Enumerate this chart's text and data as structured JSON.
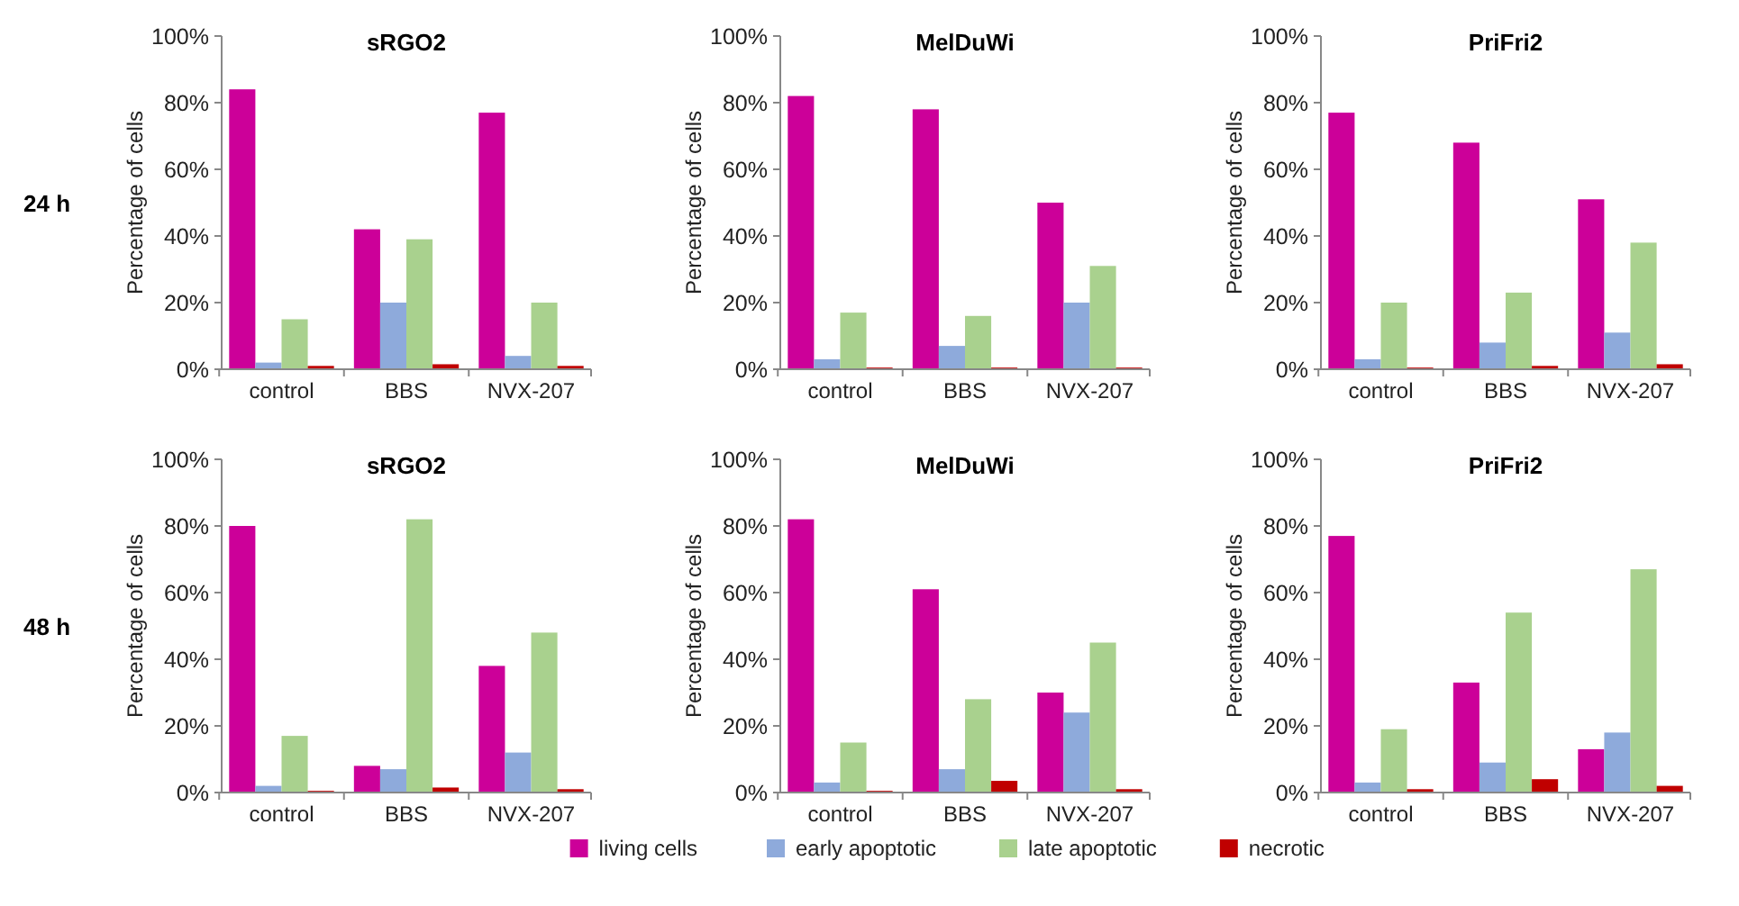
{
  "chart_data": [
    {
      "type": "bar",
      "title": "sRGO2",
      "ylabel": "Percentage of cells",
      "categories": [
        "control",
        "BBS",
        "NVX-207"
      ],
      "ylim": [
        0,
        100
      ],
      "yticks": [
        {
          "value": 0,
          "label": "0%"
        },
        {
          "value": 20,
          "label": "20%"
        },
        {
          "value": 40,
          "label": "40%"
        },
        {
          "value": 60,
          "label": "60%"
        },
        {
          "value": 80,
          "label": "80%"
        },
        {
          "value": 100,
          "label": "100%"
        }
      ],
      "legend": "bottom",
      "annotations": [
        "24 h"
      ],
      "series": [
        {
          "name": "living cells",
          "color": "#cc0099",
          "values": [
            84,
            42,
            77
          ]
        },
        {
          "name": "early apoptotic",
          "color": "#8eaadb",
          "values": [
            2,
            20,
            4
          ]
        },
        {
          "name": "late apoptotic",
          "color": "#a9d18e",
          "values": [
            15,
            39,
            20
          ]
        },
        {
          "name": "necrotic",
          "color": "#c00000",
          "values": [
            1,
            1.5,
            1
          ]
        }
      ]
    },
    {
      "type": "bar",
      "title": "MelDuWi",
      "ylabel": "Percentage of cells",
      "categories": [
        "control",
        "BBS",
        "NVX-207"
      ],
      "ylim": [
        0,
        100
      ],
      "yticks": [
        {
          "value": 0,
          "label": "0%"
        },
        {
          "value": 20,
          "label": "20%"
        },
        {
          "value": 40,
          "label": "40%"
        },
        {
          "value": 60,
          "label": "60%"
        },
        {
          "value": 80,
          "label": "80%"
        },
        {
          "value": 100,
          "label": "100%"
        }
      ],
      "series": [
        {
          "color": "#cc0099",
          "values": [
            82,
            78,
            50
          ]
        },
        {
          "color": "#8eaadb",
          "values": [
            3,
            7,
            20
          ]
        },
        {
          "color": "#a9d18e",
          "values": [
            17,
            16,
            31
          ]
        },
        {
          "color": "#c00000",
          "values": [
            0.5,
            0.5,
            0.5
          ]
        }
      ]
    },
    {
      "type": "bar",
      "title": "PriFri2",
      "ylabel": "Percentage of cells",
      "categories": [
        "control",
        "BBS",
        "NVX-207"
      ],
      "ylim": [
        0,
        100
      ],
      "yticks": [
        {
          "value": 0,
          "label": "0%"
        },
        {
          "value": 20,
          "label": "20%"
        },
        {
          "value": 40,
          "label": "40%"
        },
        {
          "value": 60,
          "label": "60%"
        },
        {
          "value": 80,
          "label": "80%"
        },
        {
          "value": 100,
          "label": "100%"
        }
      ],
      "series": [
        {
          "color": "#cc0099",
          "values": [
            77,
            68,
            51
          ]
        },
        {
          "color": "#8eaadb",
          "values": [
            3,
            8,
            11
          ]
        },
        {
          "color": "#a9d18e",
          "values": [
            20,
            23,
            38
          ]
        },
        {
          "color": "#c00000",
          "values": [
            0.5,
            1,
            1.5
          ]
        }
      ]
    },
    {
      "type": "bar",
      "title": "sRGO2",
      "ylabel": "Percentage of cells",
      "categories": [
        "control",
        "BBS",
        "NVX-207"
      ],
      "ylim": [
        0,
        100
      ],
      "yticks": [
        {
          "value": 0,
          "label": "0%"
        },
        {
          "value": 20,
          "label": "20%"
        },
        {
          "value": 40,
          "label": "40%"
        },
        {
          "value": 60,
          "label": "60%"
        },
        {
          "value": 80,
          "label": "80%"
        },
        {
          "value": 100,
          "label": "100%"
        }
      ],
      "annotations": [
        "48 h"
      ],
      "series": [
        {
          "color": "#cc0099",
          "values": [
            80,
            8,
            38
          ]
        },
        {
          "color": "#8eaadb",
          "values": [
            2,
            7,
            12
          ]
        },
        {
          "color": "#a9d18e",
          "values": [
            17,
            82,
            48
          ]
        },
        {
          "color": "#c00000",
          "values": [
            0.5,
            1.5,
            1
          ]
        }
      ]
    },
    {
      "type": "bar",
      "title": "MelDuWi",
      "ylabel": "Percentage of cells",
      "categories": [
        "control",
        "BBS",
        "NVX-207"
      ],
      "ylim": [
        0,
        100
      ],
      "yticks": [
        {
          "value": 0,
          "label": "0%"
        },
        {
          "value": 20,
          "label": "20%"
        },
        {
          "value": 40,
          "label": "40%"
        },
        {
          "value": 60,
          "label": "60%"
        },
        {
          "value": 80,
          "label": "80%"
        },
        {
          "value": 100,
          "label": "100%"
        }
      ],
      "series": [
        {
          "color": "#cc0099",
          "values": [
            82,
            61,
            30
          ]
        },
        {
          "color": "#8eaadb",
          "values": [
            3,
            7,
            24
          ]
        },
        {
          "color": "#a9d18e",
          "values": [
            15,
            28,
            45
          ]
        },
        {
          "color": "#c00000",
          "values": [
            0.5,
            3.5,
            1
          ]
        }
      ]
    },
    {
      "type": "bar",
      "title": "PriFri2",
      "ylabel": "Percentage of cells",
      "categories": [
        "control",
        "BBS",
        "NVX-207"
      ],
      "ylim": [
        0,
        100
      ],
      "yticks": [
        {
          "value": 0,
          "label": "0%"
        },
        {
          "value": 20,
          "label": "20%"
        },
        {
          "value": 40,
          "label": "40%"
        },
        {
          "value": 60,
          "label": "60%"
        },
        {
          "value": 80,
          "label": "80%"
        },
        {
          "value": 100,
          "label": "100%"
        }
      ],
      "series": [
        {
          "color": "#cc0099",
          "values": [
            77,
            33,
            13
          ]
        },
        {
          "color": "#8eaadb",
          "values": [
            3,
            9,
            18
          ]
        },
        {
          "color": "#a9d18e",
          "values": [
            19,
            54,
            67
          ]
        },
        {
          "color": "#c00000",
          "values": [
            1,
            4,
            2
          ]
        }
      ]
    }
  ]
}
